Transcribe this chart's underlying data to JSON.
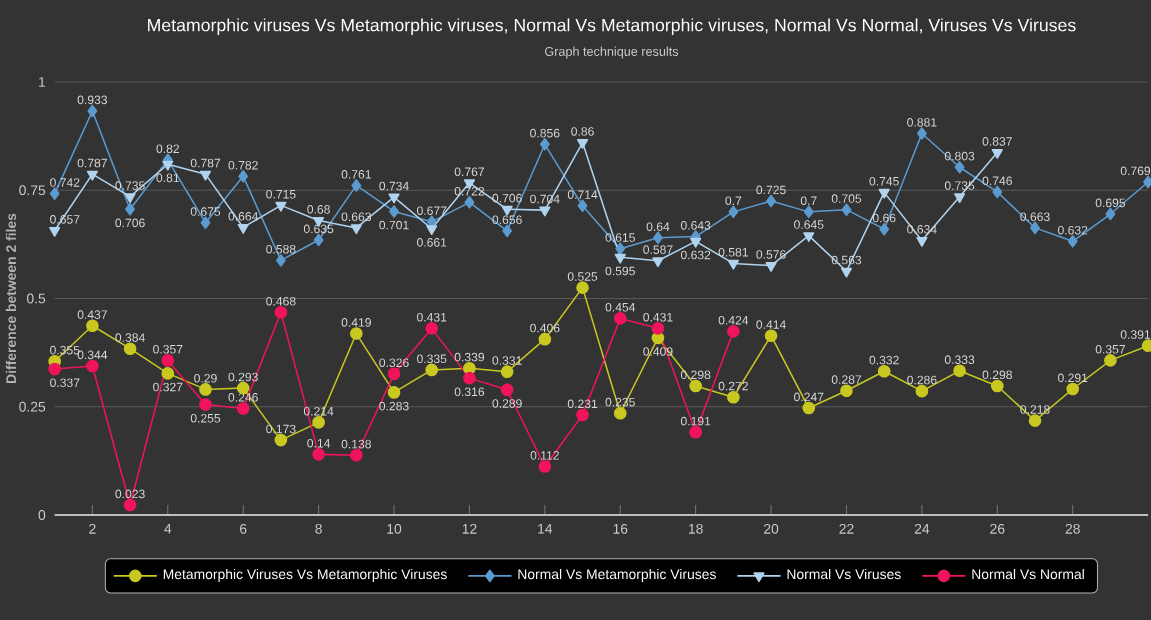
{
  "chart_data": {
    "type": "line",
    "title": "Metamorphic viruses Vs Metamorphic viruses, Normal Vs Metamorphic viruses, Normal Vs Normal, Viruses Vs Viruses",
    "subtitle": "Graph technique results",
    "ylabel": "Difference between 2 files",
    "x": [
      1,
      2,
      3,
      4,
      5,
      6,
      7,
      8,
      9,
      10,
      11,
      12,
      13,
      14,
      15,
      16,
      17,
      18,
      19,
      20,
      21,
      22,
      23,
      24,
      25,
      26,
      27,
      28,
      29,
      30
    ],
    "xlim": [
      1,
      30
    ],
    "xticks": [
      2,
      4,
      6,
      8,
      10,
      12,
      14,
      16,
      18,
      20,
      22,
      24,
      26,
      28
    ],
    "ylim": [
      0,
      1
    ],
    "yticks": [
      0,
      0.25,
      0.5,
      0.75,
      1
    ],
    "grid": "y",
    "legend": "bottom",
    "data_labels": true,
    "line_style": "solid",
    "series": [
      {
        "name": "Metamorphic Viruses Vs Metamorphic Viruses",
        "color": "#c8c820",
        "marker": "circle",
        "values": [
          0.355,
          0.437,
          0.384,
          0.327,
          0.29,
          0.293,
          0.173,
          0.214,
          0.419,
          0.283,
          0.335,
          0.339,
          0.331,
          0.406,
          0.525,
          0.235,
          0.409,
          0.298,
          0.272,
          0.414,
          0.247,
          0.287,
          0.332,
          0.286,
          0.333,
          0.298,
          0.218,
          0.291,
          0.357,
          0.391
        ]
      },
      {
        "name": "Normal Vs Metamorphic Viruses",
        "color": "#5b9bd0",
        "marker": "diamond",
        "values": [
          0.742,
          0.933,
          0.706,
          0.82,
          0.675,
          0.782,
          0.588,
          0.635,
          0.761,
          0.701,
          0.677,
          0.722,
          0.656,
          0.856,
          0.714,
          0.615,
          0.64,
          0.643,
          0.7,
          0.725,
          0.7,
          0.705,
          0.66,
          0.881,
          0.803,
          0.746,
          0.663,
          0.632,
          0.695,
          0.769
        ]
      },
      {
        "name": "Normal Vs Viruses",
        "color": "#b0d4f0",
        "marker": "triangle",
        "values": [
          0.657,
          0.787,
          0.735,
          0.81,
          0.787,
          0.664,
          0.715,
          0.68,
          0.663,
          0.734,
          0.661,
          0.767,
          0.706,
          0.704,
          0.86,
          0.595,
          0.587,
          0.632,
          0.581,
          0.576,
          0.645,
          0.563,
          0.745,
          0.634,
          0.735,
          0.837,
          null,
          null,
          null,
          null
        ]
      },
      {
        "name": "Normal Vs Normal",
        "color": "#f0145a",
        "marker": "circle",
        "values": [
          0.337,
          0.344,
          0.023,
          0.357,
          0.255,
          0.246,
          0.468,
          0.14,
          0.138,
          0.326,
          0.431,
          0.316,
          0.289,
          0.112,
          0.231,
          0.454,
          0.431,
          0.191,
          0.424,
          null,
          null,
          null,
          null,
          null,
          null,
          null,
          null,
          null,
          null,
          null
        ]
      }
    ]
  }
}
